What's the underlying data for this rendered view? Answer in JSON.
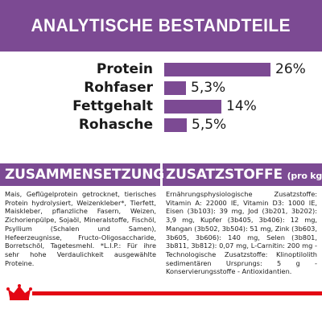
{
  "header": {
    "title": "ANALYTISCHE BESTANDTEILE"
  },
  "chart_data": {
    "type": "bar",
    "title": "ANALYTISCHE BESTANDTEILE",
    "categories": [
      "Protein",
      "Rohfaser",
      "Fettgehalt",
      "Rohasche"
    ],
    "values": [
      26,
      5.3,
      14,
      5.5
    ],
    "value_labels": [
      "26%",
      "5,3%",
      "14%",
      "5,5%"
    ],
    "xlabel": "",
    "ylabel": "",
    "xlim": [
      0,
      26
    ],
    "grid": false,
    "colors": {
      "bar": "#7c4a93"
    }
  },
  "sections": {
    "composition": {
      "title": "ZUSAMMENSETZUNG",
      "text": "Mais, Geflügelprotein getrocknet, tierisches Protein hydrolysiert, Weizenkleber*, Tierfett, Maiskleber, pflanzliche Fasern, Weizen, Zichorienpülpe, Sojaöl, Mineralstoffe, Fischöl, Psyllium (Schalen und Samen), Hefeerzeugnisse, Fructo-Oligosaccharide, Borretschöl, Tagetesmehl. *L.I.P.: Für ihre sehr hohe Verdaulichkeit ausgewählte Proteine."
    },
    "additives": {
      "title": "ZUSATZSTOFFE",
      "title_suffix": "(pro kg)",
      "text": "Ernährungsphysiologische Zusatzstoffe: Vitamin A: 22000 IE, Vitamin D3: 1000 IE, Eisen (3b103): 39 mg, Jod (3b201, 3b202): 3,9 mg, Kupfer (3b405, 3b406): 12 mg, Mangan (3b502, 3b504): 51 mg, Zink (3b603, 3b605, 3b606): 140 mg, Selen (3b801, 3b811, 3b812): 0,07 mg, L-Carnitin: 200 mg - Technologische Zusatzstoffe: Klinoptilolith sedimentären Ursprungs: 5 g - Konservierungsstoffe - Antioxidantien."
    }
  },
  "footer": {
    "logo": "royal-canin-crown-logo",
    "accent_color": "#e30613"
  }
}
